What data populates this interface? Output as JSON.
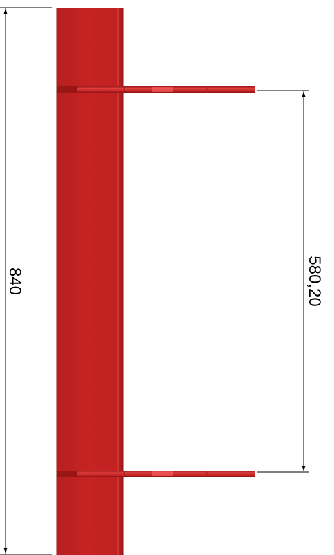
{
  "drawing": {
    "dimensions": {
      "overall_height": "840",
      "bracket_spacing": "580,20"
    },
    "colors": {
      "part_main": "#c62323",
      "part_edge": "#8e1515",
      "part_highlight": "#e24545",
      "dimension_line": "#000000"
    }
  }
}
